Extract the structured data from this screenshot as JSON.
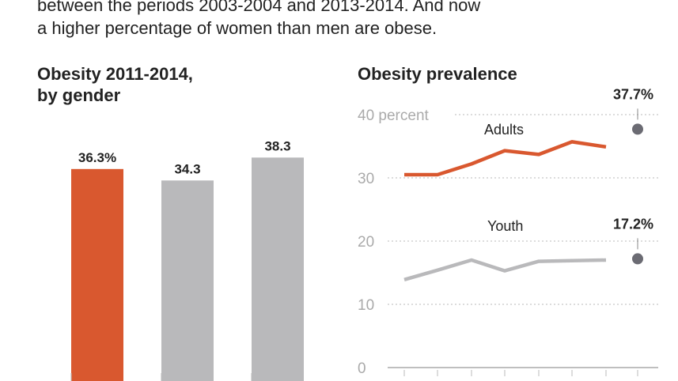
{
  "intro": {
    "line1": "between the periods 2003-2004 and 2013-2014. And now",
    "line2": "a higher percentage of women than men are obese."
  },
  "colors": {
    "accent": "#d9582f",
    "gray": "#b9b9bb",
    "dot": "#6b6b73",
    "grid": "#c8c8c8"
  },
  "chart_data": [
    {
      "type": "bar",
      "title_line1": "Obesity 2011-2014,",
      "title_line2": "by gender",
      "values": [
        36.3,
        34.3,
        38.3
      ],
      "data_labels": [
        "36.3%",
        "34.3",
        "38.3"
      ],
      "highlight_index": 0,
      "ylim": [
        0,
        40
      ]
    },
    {
      "type": "line",
      "title": "Obesity prevalence",
      "ylim": [
        0,
        40
      ],
      "yticks": [
        0,
        10,
        20,
        30,
        40
      ],
      "ytick_labels": [
        "0",
        "10",
        "20",
        "30",
        "40 percent"
      ],
      "grid": true,
      "series": [
        {
          "name": "Adults",
          "values": [
            30.5,
            30.5,
            32.2,
            34.3,
            33.7,
            35.7,
            34.9,
            37.7
          ],
          "end_label": "37.7%"
        },
        {
          "name": "Youth",
          "values": [
            13.9,
            15.4,
            17.0,
            15.3,
            16.8,
            16.9,
            17.0,
            17.2
          ],
          "end_label": "17.2%"
        }
      ]
    }
  ]
}
